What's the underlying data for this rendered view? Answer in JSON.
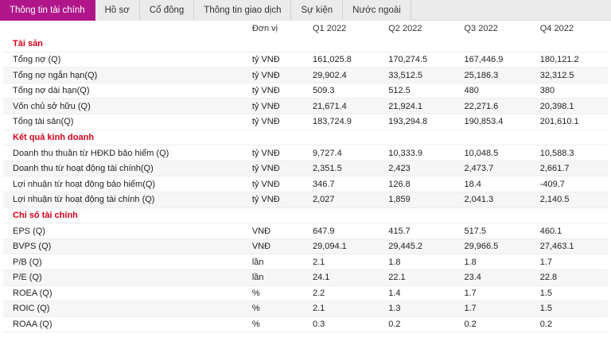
{
  "tabs": [
    {
      "label": "Thông tin tài chính",
      "active": true
    },
    {
      "label": "Hồ sơ",
      "active": false
    },
    {
      "label": "Cổ đông",
      "active": false
    },
    {
      "label": "Thông tin giao dịch",
      "active": false
    },
    {
      "label": "Sự kiện",
      "active": false
    },
    {
      "label": "Nước ngoài",
      "active": false
    }
  ],
  "table": {
    "header": {
      "name": "",
      "unit": "Đơn vị",
      "q1": "Q1 2022",
      "q2": "Q2 2022",
      "q3": "Q3 2022",
      "q4": "Q4 2022"
    },
    "sections": [
      {
        "title": "Tài sản",
        "rows": [
          {
            "name": "Tổng nợ (Q)",
            "unit": "tỷ VNĐ",
            "q1": "161,025.8",
            "q2": "170,274.5",
            "q3": "167,446.9",
            "q4": "180,121.2"
          },
          {
            "name": "Tổng nợ ngắn hạn(Q)",
            "unit": "tỷ VNĐ",
            "q1": "29,902.4",
            "q2": "33,512.5",
            "q3": "25,186.3",
            "q4": "32,312.5"
          },
          {
            "name": "Tổng nợ dài hạn(Q)",
            "unit": "tỷ VNĐ",
            "q1": "509.3",
            "q2": "512.5",
            "q3": "480",
            "q4": "380"
          },
          {
            "name": "Vốn chủ sở hữu (Q)",
            "unit": "tỷ VNĐ",
            "q1": "21,671.4",
            "q2": "21,924.1",
            "q3": "22,271.6",
            "q4": "20,398.1"
          },
          {
            "name": "Tổng tài sản(Q)",
            "unit": "tỷ VNĐ",
            "q1": "183,724.9",
            "q2": "193,294.8",
            "q3": "190,853.4",
            "q4": "201,610.1"
          }
        ]
      },
      {
        "title": "Kết quả kinh doanh",
        "rows": [
          {
            "name": "Doanh thu thuần từ HĐKD bảo hiểm (Q)",
            "unit": "tỷ VNĐ",
            "q1": "9,727.4",
            "q2": "10,333.9",
            "q3": "10,048.5",
            "q4": "10,588.3"
          },
          {
            "name": "Doanh thu từ hoạt động tài chính(Q)",
            "unit": "tỷ VNĐ",
            "q1": "2,351.5",
            "q2": "2,423",
            "q3": "2,473.7",
            "q4": "2,661.7"
          },
          {
            "name": "Lợi nhuận từ hoạt động bảo hiểm(Q)",
            "unit": "tỷ VNĐ",
            "q1": "346.7",
            "q2": "126.8",
            "q3": "18.4",
            "q4": "-409.7"
          },
          {
            "name": "Lợi nhuận từ hoạt động tài chính (Q)",
            "unit": "tỷ VNĐ",
            "q1": "2,027",
            "q2": "1,859",
            "q3": "2,041.3",
            "q4": "2,140.5"
          }
        ]
      },
      {
        "title": "Chỉ số tài chính",
        "rows": [
          {
            "name": "EPS (Q)",
            "unit": "VNĐ",
            "q1": "647.9",
            "q2": "415.7",
            "q3": "517.5",
            "q4": "460.1"
          },
          {
            "name": "BVPS (Q)",
            "unit": "VNĐ",
            "q1": "29,094.1",
            "q2": "29,445.2",
            "q3": "29,966.5",
            "q4": "27,463.1"
          },
          {
            "name": "P/B (Q)",
            "unit": "lần",
            "q1": "2.1",
            "q2": "1.8",
            "q3": "1.8",
            "q4": "1.7"
          },
          {
            "name": "P/E (Q)",
            "unit": "lần",
            "q1": "24.1",
            "q2": "22.1",
            "q3": "23.4",
            "q4": "22.8"
          },
          {
            "name": "ROEA (Q)",
            "unit": "%",
            "q1": "2.2",
            "q2": "1.4",
            "q3": "1.7",
            "q4": "1.5"
          },
          {
            "name": "ROIC (Q)",
            "unit": "%",
            "q1": "2.1",
            "q2": "1.3",
            "q3": "1.7",
            "q4": "1.5"
          },
          {
            "name": "ROAA (Q)",
            "unit": "%",
            "q1": "0.3",
            "q2": "0.2",
            "q3": "0.2",
            "q4": "0.2"
          }
        ]
      }
    ]
  }
}
